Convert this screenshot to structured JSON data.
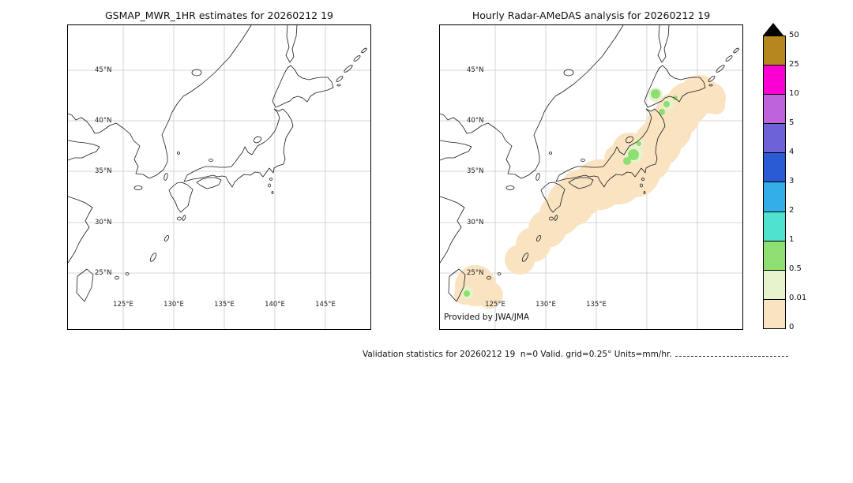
{
  "page": {
    "background": "#ffffff"
  },
  "left_panel": {
    "title": "GSMAP_MWR_1HR estimates for 20260212 19",
    "lat_labels": [
      "45°N",
      "40°N",
      "35°N",
      "30°N",
      "25°N"
    ],
    "lon_labels": [
      "125°E",
      "130°E",
      "135°E",
      "140°E",
      "145°E"
    ]
  },
  "right_panel": {
    "title": "Hourly Radar-AMeDAS analysis for 20260212 19",
    "lat_labels": [
      "45°N",
      "40°N",
      "35°N",
      "30°N",
      "25°N"
    ],
    "lon_labels": [
      "125°E",
      "130°E",
      "135°E"
    ],
    "credit": "Provided by JWA/JMA"
  },
  "colorbar": {
    "tick_labels": [
      "50",
      "25",
      "10",
      "5",
      "4",
      "3",
      "2",
      "1",
      "0.5",
      "0.01",
      "0"
    ],
    "colors": [
      "#b5871f",
      "#fa00d2",
      "#bf63dd",
      "#6e62d8",
      "#2a5ad4",
      "#33aee8",
      "#4fe3cf",
      "#8ddf72",
      "#e7f3cd",
      "#fae3c1"
    ],
    "overflow_color": "#000000"
  },
  "footer": {
    "validation_text": "Validation statistics for 20260212 19  n=0 Valid. grid=0.25° Units=mm/hr."
  },
  "chart_data": [
    {
      "type": "heatmap",
      "title": "GSMAP_MWR_1HR estimates for 20260212 19",
      "x_tick_labels": [
        "125°E",
        "130°E",
        "135°E",
        "140°E",
        "145°E"
      ],
      "y_tick_labels": [
        "45°N",
        "40°N",
        "35°N",
        "30°N",
        "25°N"
      ],
      "lon_range_deg_e": [
        119.5,
        149.5
      ],
      "lat_range_deg_n": [
        19.5,
        49.5
      ],
      "units": "mm/hr",
      "scale_boundaries": [
        0,
        0.01,
        0.5,
        1,
        2,
        3,
        4,
        5,
        10,
        25,
        50
      ],
      "grid": true,
      "field": "empty field — no GSMaP MWR precipitation estimates plotted (n=0)"
    },
    {
      "type": "heatmap",
      "title": "Hourly Radar-AMeDAS analysis for 20260212 19",
      "x_tick_labels": [
        "125°E",
        "130°E",
        "135°E"
      ],
      "y_tick_labels": [
        "45°N",
        "40°N",
        "35°N",
        "30°N",
        "25°N"
      ],
      "lon_range_deg_e": [
        119.5,
        149.5
      ],
      "lat_range_deg_n": [
        19.5,
        49.5
      ],
      "units": "mm/hr",
      "scale_boundaries": [
        0,
        0.01,
        0.5,
        1,
        2,
        3,
        4,
        5,
        10,
        25,
        50
      ],
      "grid": true,
      "field": "trace precipitation band (0–0.01 mm/hr) along the Japanese archipelago from Okinawa to Hokkaido; small 0.5–1 mm/hr patches over northern Honshu, southern Hokkaido and near Okinawa",
      "credit": "Provided by JWA/JMA",
      "legend_position": "right colorbar with black overflow triangle (>50 mm/hr)"
    }
  ]
}
